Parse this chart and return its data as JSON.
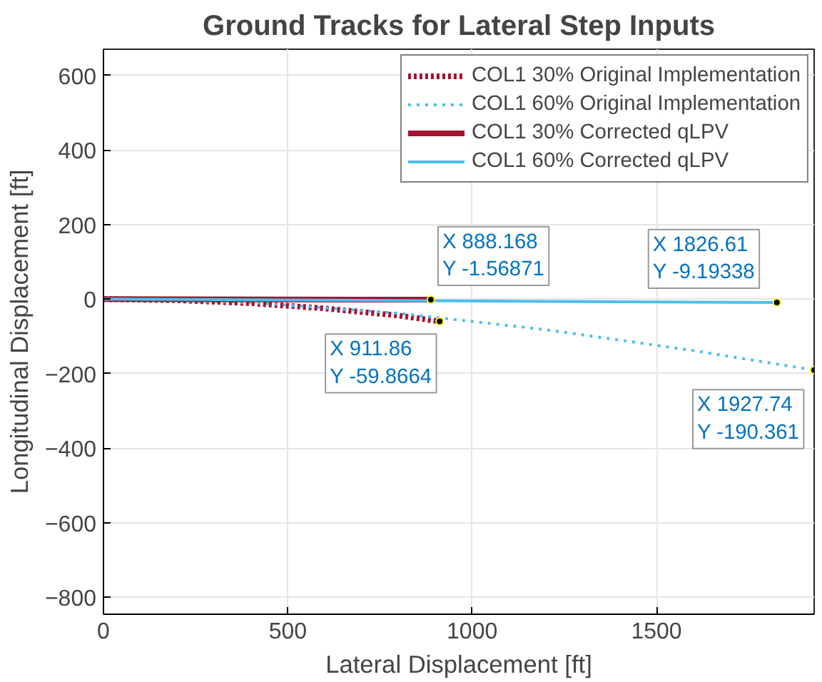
{
  "chart_data": {
    "type": "line",
    "title": "Ground Tracks for Lateral Step Inputs",
    "xlabel": "Lateral Displacement [ft]",
    "ylabel": "Longitudinal Displacement [ft]",
    "xlim": [
      0,
      1927.74
    ],
    "ylim": [
      -845,
      670
    ],
    "xticks": [
      0,
      500,
      1000,
      1500
    ],
    "yticks": [
      -800,
      -600,
      -400,
      -200,
      0,
      200,
      400,
      600
    ],
    "grid": true,
    "legend": "top right",
    "series": [
      {
        "name": "COL1 30% Original Implementation",
        "color": "#a2142f",
        "line_style": "dotted",
        "x": [
          0,
          200,
          400,
          600,
          800,
          911.86
        ],
        "values": [
          0,
          -3,
          -11,
          -25,
          -44,
          -59.8664
        ]
      },
      {
        "name": "COL1 60% Original Implementation",
        "color": "#4dbeee",
        "line_style": "dotted",
        "x": [
          0,
          400,
          800,
          1200,
          1600,
          1927.74
        ],
        "values": [
          0,
          -9,
          -38,
          -82,
          -138,
          -190.361
        ]
      },
      {
        "name": "COL1 30% Corrected qLPV",
        "color": "#a2142f",
        "line_style": "solid",
        "x": [
          0,
          888.168
        ],
        "values": [
          0,
          -1.56871
        ]
      },
      {
        "name": "COL1 60% Corrected qLPV",
        "color": "#4dbeee",
        "line_style": "solid",
        "x": [
          0,
          1826.61
        ],
        "values": [
          0,
          -9.19338
        ]
      }
    ],
    "annotations": [
      {
        "text": "X 888.168\nY -1.56871",
        "x": 888.168,
        "y": -1.56871
      },
      {
        "text": "X 911.86\nY -59.8664",
        "x": 911.86,
        "y": -59.8664
      },
      {
        "text": "X 1826.61\nY -9.19338",
        "x": 1826.61,
        "y": -9.19338
      },
      {
        "text": "X 1927.74\nY -190.361",
        "x": 1927.74,
        "y": -190.361
      }
    ]
  }
}
